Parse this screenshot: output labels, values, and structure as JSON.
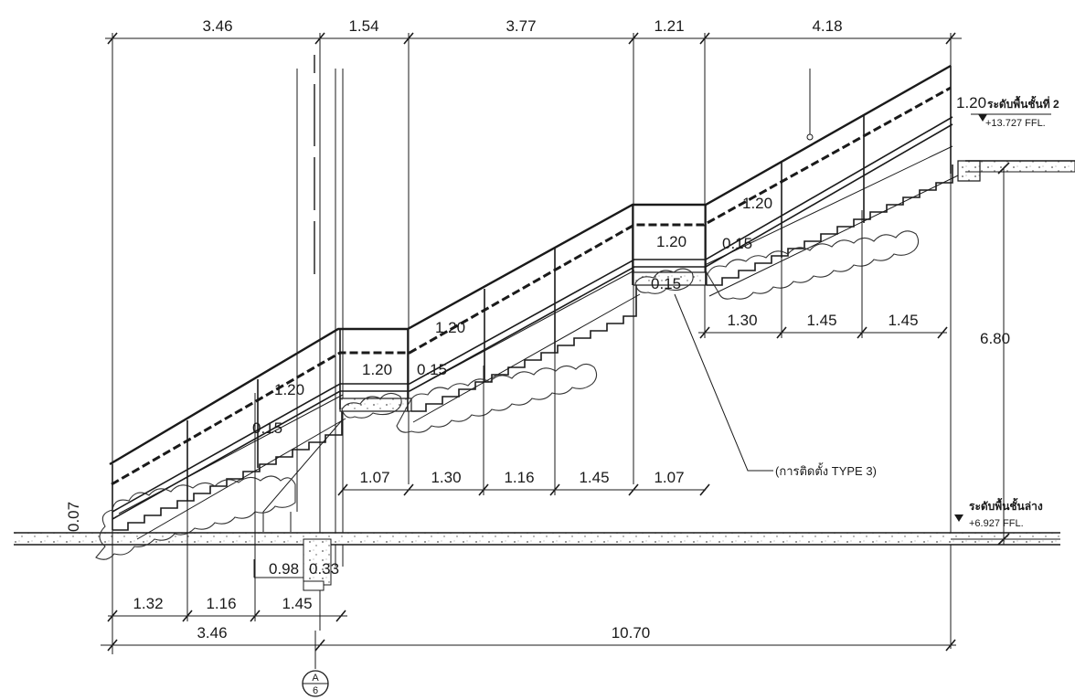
{
  "drawing": {
    "top_dims": [
      "3.46",
      "1.54",
      "3.77",
      "1.21",
      "4.18"
    ],
    "mid_dims_upper": [
      "1.30",
      "1.45",
      "1.45"
    ],
    "mid_dims_lower": [
      "1.07",
      "1.30",
      "1.16",
      "1.45",
      "1.07"
    ],
    "bottom_dims_row1": [
      "1.32",
      "1.16",
      "1.45"
    ],
    "bottom_dims_row2": [
      "3.46",
      "10.70"
    ],
    "height_dim": "6.80",
    "rail_heights": [
      "1.20",
      "1.20",
      "1.20",
      "1.20",
      "1.20",
      "1.20"
    ],
    "step_offsets": [
      "0.15",
      "0.15",
      "0.15",
      "0.15"
    ],
    "small_dims": [
      "0.07",
      "0.98",
      "0.33"
    ],
    "upper_level": {
      "label": "ระดับพื้นชั้นที่ 2",
      "value": "+13.727 FFL."
    },
    "lower_level": {
      "label": "ระดับพื้นชั้นล่าง",
      "value": "+6.927 FFL."
    },
    "callout": "(การติดตั้ง TYPE 3)",
    "section_marker": {
      "top": "A",
      "bottom": "6"
    }
  }
}
